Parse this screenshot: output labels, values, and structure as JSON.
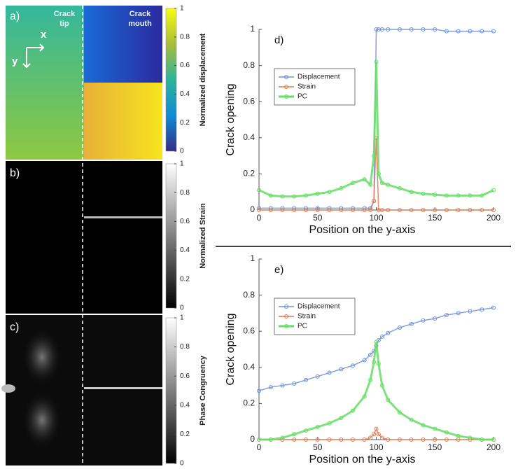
{
  "panels": [
    {
      "label": "a)",
      "tip": [
        "Crack",
        "tip"
      ],
      "mouth": [
        "Crack",
        "mouth"
      ],
      "axis_x": "x",
      "axis_y": "y",
      "colorbar": {
        "label": "Normalized displacement",
        "lim": [
          0,
          1
        ],
        "ticks": [
          0,
          0.2,
          0.4,
          0.6,
          0.8,
          1
        ]
      }
    },
    {
      "label": "b)",
      "colorbar": {
        "label": "Normalized Strain",
        "lim": [
          0,
          1
        ],
        "ticks": [
          0,
          0.2,
          0.4,
          0.6,
          0.8,
          1
        ]
      }
    },
    {
      "label": "c)",
      "colorbar": {
        "label": "Phase Congruency",
        "lim": [
          0,
          1
        ],
        "ticks": [
          0,
          0.2,
          0.4,
          0.6,
          0.8,
          1
        ]
      }
    }
  ],
  "chart_data": [
    {
      "type": "line",
      "annotation": "d)",
      "xlabel": "Position on the y-axis",
      "ylabel": "Crack opening",
      "x": [
        0,
        10,
        20,
        30,
        40,
        50,
        60,
        70,
        80,
        90,
        95,
        98,
        100,
        102,
        105,
        110,
        120,
        130,
        140,
        150,
        160,
        170,
        180,
        190,
        200
      ],
      "series": [
        {
          "name": "Displacement",
          "color": "#6f8fd8",
          "values": [
            0.01,
            0.01,
            0.01,
            0.01,
            0.01,
            0.01,
            0.01,
            0.01,
            0.01,
            0.01,
            0.01,
            0.05,
            1.0,
            1.0,
            1.0,
            1.0,
            1.0,
            1.0,
            1.0,
            1.0,
            0.99,
            0.99,
            0.99,
            0.99,
            0.99
          ]
        },
        {
          "name": "Strain",
          "color": "#e07a50",
          "values": [
            0,
            0,
            0,
            0,
            0,
            0,
            0,
            0,
            0,
            0,
            0,
            0.05,
            0.4,
            0,
            0,
            0,
            0,
            0,
            0,
            0,
            0,
            0,
            0,
            0,
            0
          ]
        },
        {
          "name": "PC",
          "color": "#66dd66",
          "values": [
            0.11,
            0.08,
            0.075,
            0.075,
            0.08,
            0.09,
            0.1,
            0.12,
            0.15,
            0.17,
            0.14,
            0.3,
            0.82,
            0.2,
            0.15,
            0.14,
            0.12,
            0.1,
            0.09,
            0.085,
            0.08,
            0.08,
            0.08,
            0.08,
            0.11
          ]
        }
      ],
      "xlim": [
        0,
        200
      ],
      "xticks": [
        0,
        50,
        100,
        150,
        200
      ],
      "ylim": [
        0,
        1
      ],
      "yticks": [
        0,
        0.2,
        0.4,
        0.6,
        0.8,
        1
      ],
      "legend": "upper left"
    },
    {
      "type": "line",
      "annotation": "e)",
      "xlabel": "Position on the y-axis",
      "ylabel": "Crack opening",
      "x": [
        0,
        10,
        20,
        30,
        40,
        50,
        60,
        70,
        80,
        90,
        95,
        98,
        100,
        102,
        105,
        110,
        120,
        130,
        140,
        150,
        160,
        170,
        180,
        190,
        200
      ],
      "series": [
        {
          "name": "Displacement",
          "color": "#6f8fd8",
          "values": [
            0.27,
            0.29,
            0.3,
            0.31,
            0.33,
            0.35,
            0.37,
            0.39,
            0.41,
            0.44,
            0.47,
            0.49,
            0.52,
            0.55,
            0.57,
            0.59,
            0.62,
            0.64,
            0.66,
            0.67,
            0.69,
            0.7,
            0.71,
            0.72,
            0.73
          ]
        },
        {
          "name": "Strain",
          "color": "#e07a50",
          "values": [
            0,
            0,
            0,
            0,
            0,
            0,
            0,
            0,
            0,
            0,
            0.01,
            0.03,
            0.06,
            0.03,
            0.01,
            0,
            0,
            0,
            0,
            0,
            0,
            0,
            0,
            0,
            0
          ]
        },
        {
          "name": "PC",
          "color": "#66dd66",
          "values": [
            0,
            0,
            0.01,
            0.03,
            0.05,
            0.07,
            0.09,
            0.12,
            0.16,
            0.24,
            0.33,
            0.43,
            0.54,
            0.42,
            0.3,
            0.22,
            0.15,
            0.11,
            0.08,
            0.06,
            0.04,
            0.02,
            0.01,
            0,
            0
          ]
        }
      ],
      "xlim": [
        0,
        200
      ],
      "xticks": [
        0,
        50,
        100,
        150,
        200
      ],
      "ylim": [
        0,
        1
      ],
      "yticks": [
        0,
        0.2,
        0.4,
        0.6,
        0.8,
        1
      ],
      "legend": "upper left"
    }
  ]
}
